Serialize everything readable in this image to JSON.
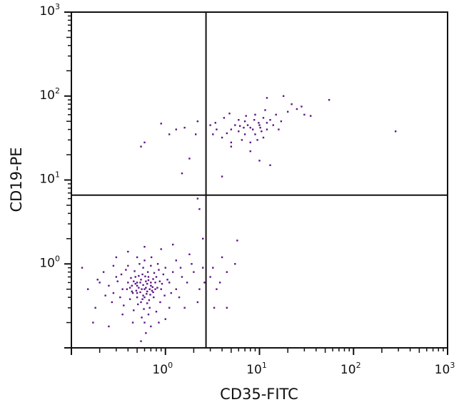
{
  "chart_data": {
    "type": "scatter",
    "xlabel": "CD35-FITC",
    "ylabel": "CD19-PE",
    "xscale": "log",
    "yscale": "log",
    "xlim": [
      0.1,
      1000
    ],
    "ylim": [
      0.1,
      1000
    ],
    "x_tick_labels": [
      {
        "base": "10",
        "exp": "0",
        "value": 1
      },
      {
        "base": "10",
        "exp": "1",
        "value": 10
      },
      {
        "base": "10",
        "exp": "2",
        "value": 100
      },
      {
        "base": "10",
        "exp": "3",
        "value": 1000
      }
    ],
    "y_tick_labels": [
      {
        "base": "10",
        "exp": "0",
        "value": 1
      },
      {
        "base": "10",
        "exp": "1",
        "value": 10
      },
      {
        "base": "10",
        "exp": "2",
        "value": 100
      },
      {
        "base": "10",
        "exp": "3",
        "value": 1000
      }
    ],
    "grid": false,
    "quadrant_gates": {
      "x": 2.7,
      "y": 6.6
    },
    "point_color": "#5b1587",
    "points": [
      [
        0.6,
        0.5
      ],
      [
        0.5,
        0.6
      ],
      [
        0.7,
        0.55
      ],
      [
        0.45,
        0.45
      ],
      [
        0.8,
        0.7
      ],
      [
        0.55,
        0.35
      ],
      [
        0.65,
        0.8
      ],
      [
        0.4,
        0.6
      ],
      [
        0.9,
        0.5
      ],
      [
        0.5,
        0.4
      ],
      [
        0.62,
        0.62
      ],
      [
        0.35,
        0.5
      ],
      [
        0.75,
        0.4
      ],
      [
        0.58,
        0.9
      ],
      [
        1.1,
        0.6
      ],
      [
        0.48,
        0.7
      ],
      [
        0.68,
        0.3
      ],
      [
        0.3,
        0.7
      ],
      [
        0.85,
        0.85
      ],
      [
        0.52,
        0.52
      ],
      [
        0.72,
        0.48
      ],
      [
        0.42,
        0.38
      ],
      [
        0.6,
        1.1
      ],
      [
        0.95,
        0.75
      ],
      [
        0.38,
        0.85
      ],
      [
        0.66,
        0.25
      ],
      [
        0.55,
        0.65
      ],
      [
        1.3,
        0.5
      ],
      [
        0.25,
        0.55
      ],
      [
        0.78,
        0.6
      ],
      [
        0.46,
        0.28
      ],
      [
        0.63,
        0.44
      ],
      [
        1.0,
        0.9
      ],
      [
        0.33,
        0.4
      ],
      [
        0.88,
        0.35
      ],
      [
        0.57,
        0.75
      ],
      [
        0.7,
        0.95
      ],
      [
        0.44,
        0.55
      ],
      [
        1.5,
        0.7
      ],
      [
        0.2,
        0.6
      ],
      [
        0.6,
        0.2
      ],
      [
        0.5,
        1.2
      ],
      [
        0.82,
        0.52
      ],
      [
        0.36,
        0.32
      ],
      [
        1.2,
        0.8
      ],
      [
        0.64,
        0.58
      ],
      [
        0.54,
        0.46
      ],
      [
        0.74,
        0.66
      ],
      [
        0.4,
        0.95
      ],
      [
        0.98,
        0.42
      ],
      [
        0.28,
        0.45
      ],
      [
        0.67,
        0.37
      ],
      [
        1.7,
        0.6
      ],
      [
        0.47,
        0.82
      ],
      [
        0.59,
        0.29
      ],
      [
        0.83,
        1.0
      ],
      [
        0.31,
        0.62
      ],
      [
        0.73,
        0.53
      ],
      [
        0.51,
        0.33
      ],
      [
        1.05,
        0.65
      ],
      [
        0.43,
        0.68
      ],
      [
        0.61,
        0.71
      ],
      [
        0.69,
        0.43
      ],
      [
        0.22,
        0.8
      ],
      [
        0.92,
        0.58
      ],
      [
        0.56,
        0.23
      ],
      [
        0.76,
        0.78
      ],
      [
        1.4,
        0.4
      ],
      [
        0.39,
        0.5
      ],
      [
        0.53,
        1.0
      ],
      [
        0.87,
        0.62
      ],
      [
        0.49,
        0.48
      ],
      [
        0.64,
        0.34
      ],
      [
        2.0,
        0.8
      ],
      [
        0.27,
        0.35
      ],
      [
        0.71,
        1.2
      ],
      [
        0.58,
        0.56
      ],
      [
        1.15,
        0.45
      ],
      [
        0.34,
        0.75
      ],
      [
        0.8,
        0.27
      ],
      [
        0.45,
        0.2
      ],
      [
        0.62,
        0.15
      ],
      [
        0.7,
        0.18
      ],
      [
        0.55,
        0.12
      ],
      [
        0.15,
        0.5
      ],
      [
        0.13,
        0.9
      ],
      [
        0.18,
        0.3
      ],
      [
        2.3,
        0.5
      ],
      [
        2.5,
        0.9
      ],
      [
        1.8,
        1.3
      ],
      [
        1.6,
        0.3
      ],
      [
        2.2,
        0.35
      ],
      [
        0.9,
        1.5
      ],
      [
        0.4,
        1.4
      ],
      [
        0.6,
        1.6
      ],
      [
        1.2,
        1.7
      ],
      [
        0.3,
        1.2
      ],
      [
        0.17,
        0.2
      ],
      [
        0.25,
        0.18
      ],
      [
        1.0,
        0.22
      ],
      [
        0.48,
        0.58
      ],
      [
        0.66,
        0.64
      ],
      [
        0.52,
        0.72
      ],
      [
        0.74,
        0.46
      ],
      [
        0.58,
        0.42
      ],
      [
        0.44,
        0.47
      ],
      [
        0.62,
        0.52
      ],
      [
        0.7,
        0.6
      ],
      [
        0.56,
        0.5
      ],
      [
        0.5,
        0.55
      ],
      [
        0.68,
        0.5
      ],
      [
        0.6,
        0.4
      ],
      [
        0.54,
        0.6
      ],
      [
        0.64,
        0.47
      ],
      [
        0.46,
        0.62
      ],
      [
        0.78,
        0.5
      ],
      [
        0.42,
        0.52
      ],
      [
        0.57,
        0.38
      ],
      [
        0.66,
        0.7
      ],
      [
        0.5,
        0.45
      ],
      [
        2.6,
        0.6
      ],
      [
        1.9,
        1.0
      ],
      [
        1.3,
        1.1
      ],
      [
        0.35,
        0.25
      ],
      [
        0.28,
        0.95
      ],
      [
        1.1,
        0.3
      ],
      [
        0.85,
        0.2
      ],
      [
        0.23,
        0.42
      ],
      [
        0.19,
        0.65
      ],
      [
        1.45,
        0.9
      ],
      [
        3.2,
        0.9
      ],
      [
        4,
        1.2
      ],
      [
        3.5,
        0.5
      ],
      [
        4.5,
        0.8
      ],
      [
        5.5,
        1.0
      ],
      [
        4.5,
        0.3
      ],
      [
        3.3,
        0.3
      ],
      [
        5.8,
        1.9
      ],
      [
        3.0,
        0.7
      ],
      [
        3.8,
        0.6
      ],
      [
        2.2,
        6
      ],
      [
        2.3,
        4.5
      ],
      [
        2.5,
        2.0
      ],
      [
        8,
        42
      ],
      [
        6,
        38
      ],
      [
        10,
        45
      ],
      [
        7,
        50
      ],
      [
        9,
        35
      ],
      [
        5,
        40
      ],
      [
        12,
        48
      ],
      [
        6.5,
        30
      ],
      [
        11,
        55
      ],
      [
        4.5,
        36
      ],
      [
        8.5,
        40
      ],
      [
        7.5,
        45
      ],
      [
        13,
        52
      ],
      [
        5.5,
        45
      ],
      [
        9.5,
        30
      ],
      [
        15,
        60
      ],
      [
        4,
        32
      ],
      [
        10.5,
        38
      ],
      [
        6,
        52
      ],
      [
        8,
        28
      ],
      [
        20,
        65
      ],
      [
        17,
        50
      ],
      [
        3.5,
        40
      ],
      [
        12,
        40
      ],
      [
        7,
        35
      ],
      [
        9,
        60
      ],
      [
        14,
        45
      ],
      [
        5,
        28
      ],
      [
        11,
        32
      ],
      [
        6.8,
        42
      ],
      [
        25,
        70
      ],
      [
        30,
        60
      ],
      [
        18,
        100
      ],
      [
        12,
        95
      ],
      [
        22,
        80
      ],
      [
        55,
        90
      ],
      [
        280,
        38
      ],
      [
        3.2,
        35
      ],
      [
        3.4,
        48
      ],
      [
        4.2,
        55
      ],
      [
        16,
        40
      ],
      [
        8,
        22
      ],
      [
        10,
        17
      ],
      [
        13,
        15
      ],
      [
        5,
        25
      ],
      [
        7.2,
        58
      ],
      [
        9.8,
        48
      ],
      [
        8.8,
        52
      ],
      [
        6.2,
        44
      ],
      [
        10.2,
        42
      ],
      [
        3,
        45
      ],
      [
        35,
        58
      ],
      [
        28,
        75
      ],
      [
        4.8,
        62
      ],
      [
        11.5,
        68
      ],
      [
        0.55,
        25
      ],
      [
        0.6,
        28
      ],
      [
        1.3,
        40
      ],
      [
        1.6,
        42
      ],
      [
        1.1,
        35
      ],
      [
        2.1,
        35
      ],
      [
        1.8,
        18
      ],
      [
        1.5,
        12
      ],
      [
        0.9,
        47
      ],
      [
        2.2,
        50
      ],
      [
        4,
        11
      ]
    ]
  }
}
